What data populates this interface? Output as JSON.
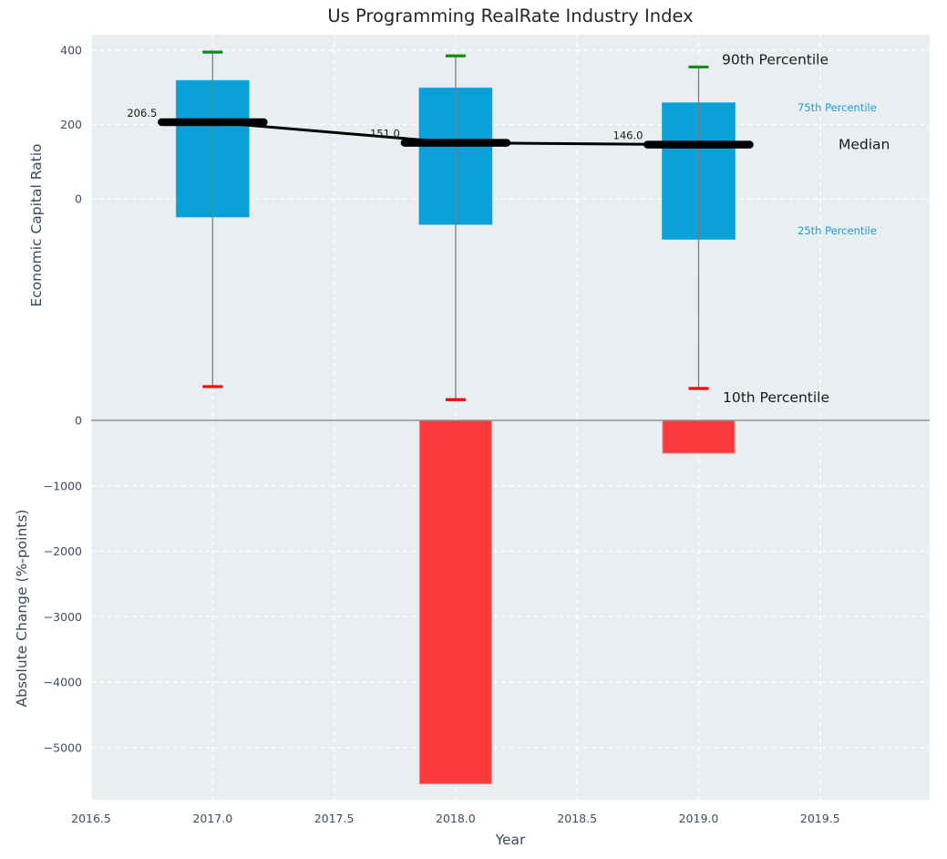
{
  "title": "Us Programming RealRate Industry Index",
  "colors": {
    "figure_bg": "#ffffff",
    "axes_bg": "#e9eef1",
    "grid": "#ffffff",
    "box_fill": "#0aa0d8",
    "bar_fill": "#fb3b3b",
    "bar_edge": "#ff7a7a",
    "cap_top": "#0b8f0b",
    "cap_bottom": "#f70505",
    "whisker": "#7e7e7e",
    "zero_line": "#919191",
    "median_line": "#000000",
    "tick_text": "#3b4e63",
    "axis_label_text": "#36495d",
    "annotation_dark": "#1a1a1a",
    "annotation_blue": "#1a9cd6",
    "title_text": "#262626"
  },
  "chart_data": {
    "title": "Us Programming RealRate Industry Index",
    "xlabel": "Year",
    "xlim": [
      2016.5,
      2019.95
    ],
    "xticks": {
      "values": [
        2016.5,
        2017.0,
        2017.5,
        2018.0,
        2018.5,
        2019.0,
        2019.5
      ],
      "labels": [
        "2016.5",
        "2017.0",
        "2017.5",
        "2018.0",
        "2018.5",
        "2019.0",
        "2019.5"
      ]
    },
    "grid": "white dashed, on",
    "legend": "none",
    "top_panel": {
      "type": "boxplot",
      "ylabel": "Economic Capital Ratio",
      "ylim": [
        -591,
        442
      ],
      "yticks": {
        "values": [
          400,
          200,
          0
        ],
        "labels": [
          "400",
          "200",
          "0"
        ]
      },
      "years": [
        2017,
        2018,
        2019
      ],
      "p90": [
        395,
        385,
        355
      ],
      "p75": [
        320,
        300,
        260
      ],
      "median": [
        206.5,
        151.0,
        146.0
      ],
      "median_labels": [
        "206.5",
        "151.0",
        "146.0"
      ],
      "p25": [
        -50,
        -70,
        -110
      ],
      "p10": [
        -505,
        -540,
        -510
      ],
      "annotations": [
        {
          "id": "p90",
          "text": "90th Percentile",
          "style": "dark-large"
        },
        {
          "id": "p75",
          "text": "75th Percentile",
          "style": "blue-small"
        },
        {
          "id": "median",
          "text": "Median",
          "style": "dark-large"
        },
        {
          "id": "p25",
          "text": "25th Percentile",
          "style": "blue-small"
        },
        {
          "id": "p10",
          "text": "10th Percentile",
          "style": "dark-large"
        }
      ]
    },
    "bottom_panel": {
      "type": "bar",
      "ylabel": "Absolute Change (%-points)",
      "ylim": [
        -5794,
        28
      ],
      "yticks": {
        "values": [
          0,
          -1000,
          -2000,
          -3000,
          -4000,
          -5000
        ],
        "labels": [
          "0",
          "−1000",
          "−2000",
          "−3000",
          "−4000",
          "−5000"
        ]
      },
      "bar_years": [
        2018,
        2019
      ],
      "bar_values": [
        -5550,
        -500
      ]
    }
  }
}
